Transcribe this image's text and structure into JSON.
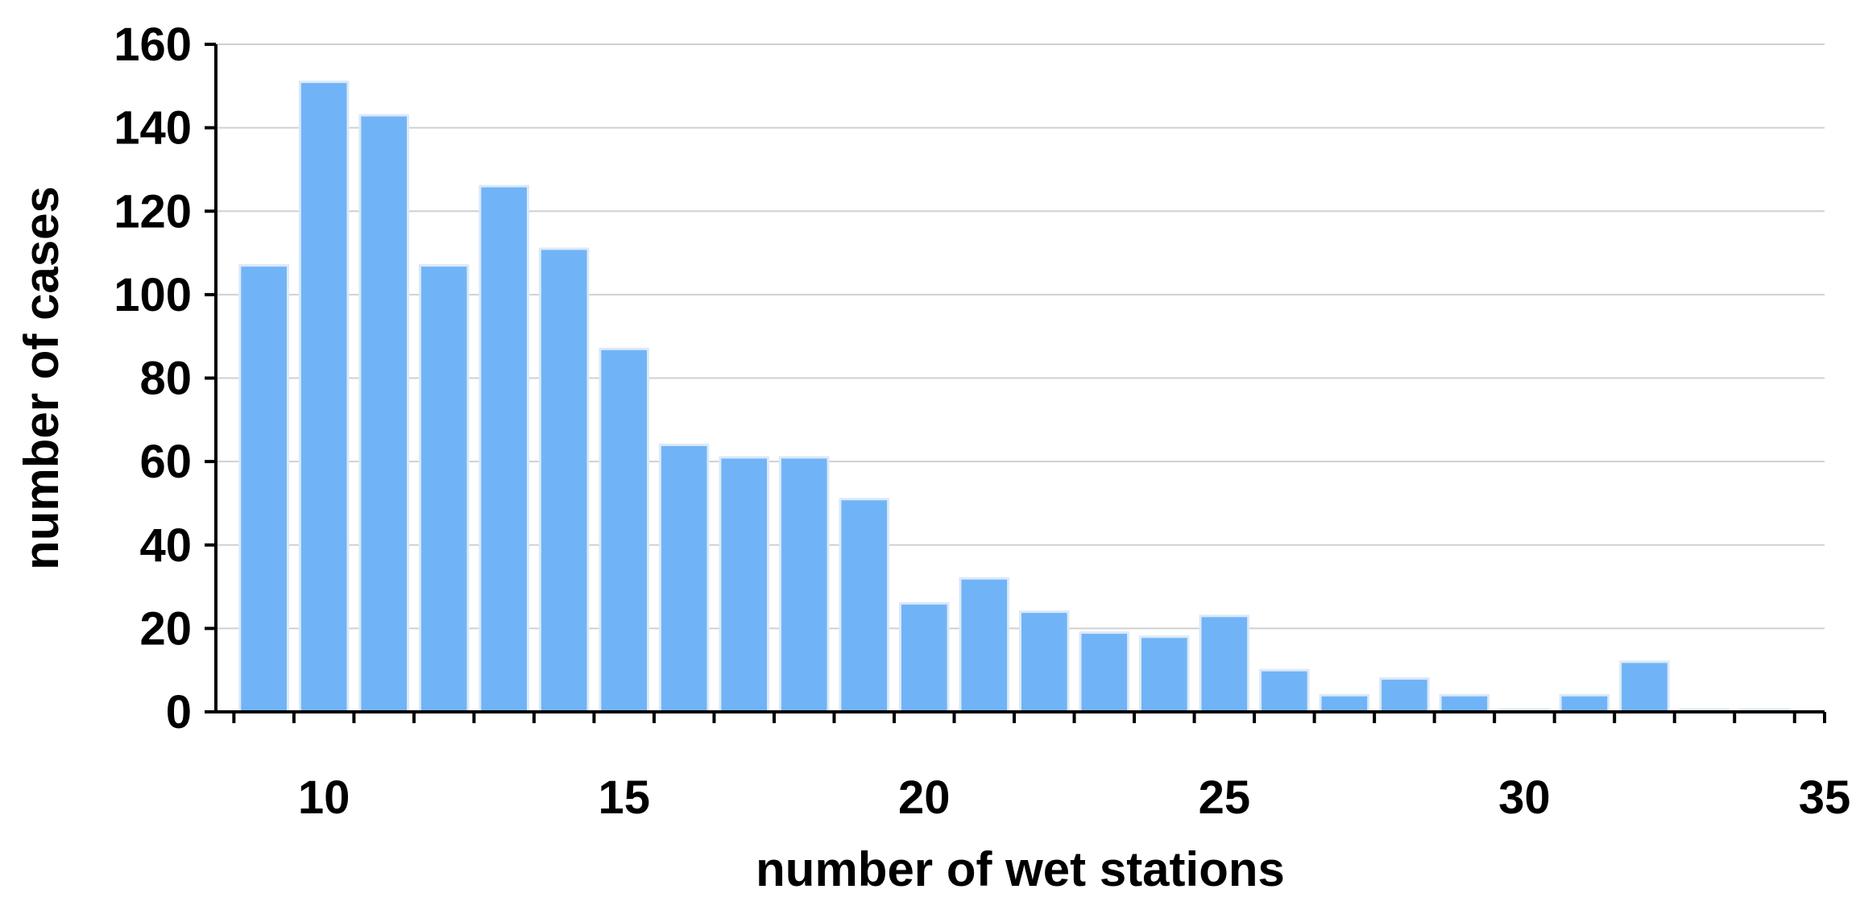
{
  "chart_data": {
    "type": "bar",
    "title": "",
    "xlabel": "number of wet stations",
    "ylabel": "number of cases",
    "x": [
      9,
      10,
      11,
      12,
      13,
      14,
      15,
      16,
      17,
      18,
      19,
      20,
      21,
      22,
      23,
      24,
      25,
      26,
      27,
      28,
      29,
      30,
      31,
      32,
      33,
      34
    ],
    "values": [
      107,
      151,
      143,
      107,
      126,
      111,
      87,
      64,
      61,
      61,
      51,
      26,
      32,
      24,
      19,
      18,
      23,
      10,
      4,
      8,
      4,
      0,
      4,
      12,
      0,
      0
    ],
    "xlim": [
      8.2,
      35
    ],
    "ylim": [
      0,
      160
    ],
    "xticks": [
      "10",
      "15",
      "20",
      "25",
      "30",
      "35"
    ],
    "xtick_values": [
      10,
      15,
      20,
      25,
      30,
      35
    ],
    "yticks": [
      "0",
      "20",
      "40",
      "60",
      "80",
      "100",
      "120",
      "140",
      "160"
    ],
    "ytick_values": [
      0,
      20,
      40,
      60,
      80,
      100,
      120,
      140,
      160
    ],
    "grid": true,
    "legend": "none",
    "bar_color": "#70b4f7",
    "bar_edge_color": "#dce9f7",
    "grid_color": "#d0d0d0",
    "axis_color": "#000000"
  }
}
